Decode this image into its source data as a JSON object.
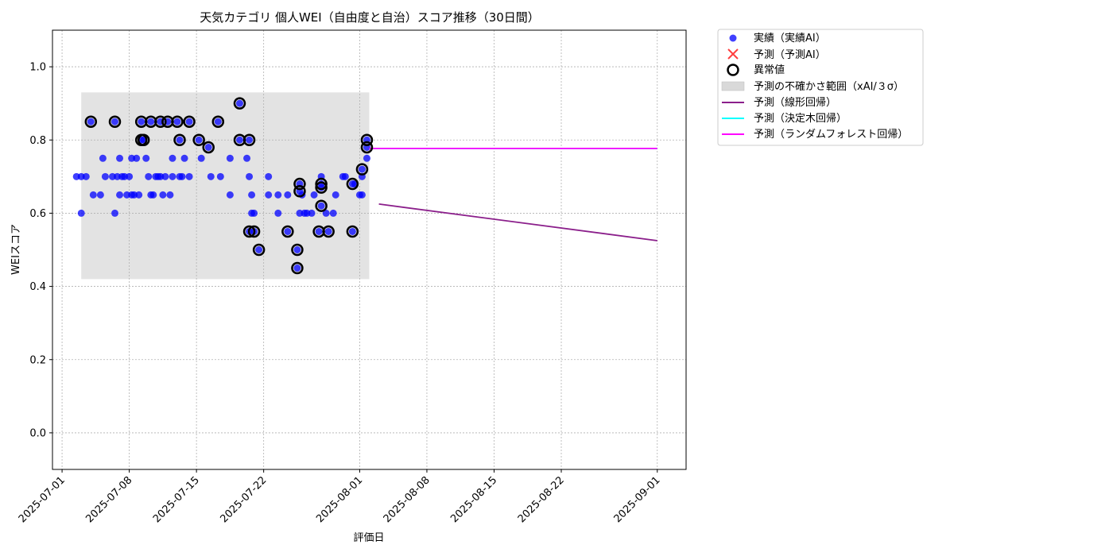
{
  "chart_data": {
    "type": "scatter",
    "title": "天気カテゴリ 個人WEI（自由度と自治）スコア推移（30日間）",
    "xlabel": "評価日",
    "ylabel": "WEIスコア",
    "xlim": [
      "2025-06-30",
      "2025-09-04"
    ],
    "ylim": [
      -0.1,
      1.1
    ],
    "yticks": [
      0.0,
      0.2,
      0.4,
      0.6,
      0.8,
      1.0
    ],
    "yticklabels": [
      "0.0",
      "0.2",
      "0.4",
      "0.6",
      "0.8",
      "1.0"
    ],
    "xticks": [
      "2025-07-01",
      "2025-07-08",
      "2025-07-15",
      "2025-07-22",
      "2025-08-01",
      "2025-08-08",
      "2025-08-15",
      "2025-08-22",
      "2025-09-01"
    ],
    "grid": true,
    "legend_position": "outside-top-right",
    "uncertainty_band": {
      "x_start": "2025-07-03",
      "x_end": "2025-08-02",
      "y_low": 0.42,
      "y_high": 0.93,
      "color": "#d9d9d9"
    },
    "series": [
      {
        "name": "実績（実績AI）",
        "kind": "scatter",
        "color": "#0000ff",
        "points": [
          [
            "2025-07-02 12:00",
            0.7
          ],
          [
            "2025-07-03 00:00",
            0.7
          ],
          [
            "2025-07-03 00:00",
            0.6
          ],
          [
            "2025-07-03 12:00",
            0.7
          ],
          [
            "2025-07-04 00:00",
            0.85
          ],
          [
            "2025-07-04 06:00",
            0.65
          ],
          [
            "2025-07-05 00:00",
            0.65
          ],
          [
            "2025-07-05 06:00",
            0.75
          ],
          [
            "2025-07-05 12:00",
            0.7
          ],
          [
            "2025-07-06 06:00",
            0.7
          ],
          [
            "2025-07-06 12:00",
            0.6
          ],
          [
            "2025-07-06 12:00",
            0.85
          ],
          [
            "2025-07-06 18:00",
            0.7
          ],
          [
            "2025-07-07 00:00",
            0.65
          ],
          [
            "2025-07-07 00:00",
            0.75
          ],
          [
            "2025-07-07 06:00",
            0.7
          ],
          [
            "2025-07-07 12:00",
            0.7
          ],
          [
            "2025-07-07 18:00",
            0.65
          ],
          [
            "2025-07-08 00:00",
            0.7
          ],
          [
            "2025-07-08 06:00",
            0.65
          ],
          [
            "2025-07-08 06:00",
            0.75
          ],
          [
            "2025-07-08 12:00",
            0.65
          ],
          [
            "2025-07-08 18:00",
            0.75
          ],
          [
            "2025-07-09 00:00",
            0.65
          ],
          [
            "2025-07-09 06:00",
            0.8
          ],
          [
            "2025-07-09 06:00",
            0.85
          ],
          [
            "2025-07-09 12:00",
            0.8
          ],
          [
            "2025-07-09 18:00",
            0.75
          ],
          [
            "2025-07-10 00:00",
            0.7
          ],
          [
            "2025-07-10 06:00",
            0.85
          ],
          [
            "2025-07-10 06:00",
            0.65
          ],
          [
            "2025-07-10 12:00",
            0.65
          ],
          [
            "2025-07-10 18:00",
            0.7
          ],
          [
            "2025-07-11 00:00",
            0.7
          ],
          [
            "2025-07-11 06:00",
            0.85
          ],
          [
            "2025-07-11 06:00",
            0.7
          ],
          [
            "2025-07-11 12:00",
            0.65
          ],
          [
            "2025-07-11 18:00",
            0.7
          ],
          [
            "2025-07-12 00:00",
            0.85
          ],
          [
            "2025-07-12 06:00",
            0.65
          ],
          [
            "2025-07-12 12:00",
            0.75
          ],
          [
            "2025-07-12 12:00",
            0.7
          ],
          [
            "2025-07-13 00:00",
            0.85
          ],
          [
            "2025-07-13 06:00",
            0.7
          ],
          [
            "2025-07-13 06:00",
            0.8
          ],
          [
            "2025-07-13 12:00",
            0.7
          ],
          [
            "2025-07-13 18:00",
            0.75
          ],
          [
            "2025-07-14 06:00",
            0.85
          ],
          [
            "2025-07-14 06:00",
            0.7
          ],
          [
            "2025-07-15 06:00",
            0.8
          ],
          [
            "2025-07-15 12:00",
            0.75
          ],
          [
            "2025-07-16 06:00",
            0.78
          ],
          [
            "2025-07-16 12:00",
            0.7
          ],
          [
            "2025-07-17 06:00",
            0.85
          ],
          [
            "2025-07-17 12:00",
            0.7
          ],
          [
            "2025-07-18 12:00",
            0.75
          ],
          [
            "2025-07-18 12:00",
            0.65
          ],
          [
            "2025-07-19 12:00",
            0.9
          ],
          [
            "2025-07-19 12:00",
            0.8
          ],
          [
            "2025-07-20 06:00",
            0.75
          ],
          [
            "2025-07-20 12:00",
            0.8
          ],
          [
            "2025-07-20 12:00",
            0.7
          ],
          [
            "2025-07-20 12:00",
            0.55
          ],
          [
            "2025-07-20 18:00",
            0.65
          ],
          [
            "2025-07-20 18:00",
            0.6
          ],
          [
            "2025-07-21 00:00",
            0.55
          ],
          [
            "2025-07-21 00:00",
            0.6
          ],
          [
            "2025-07-21 12:00",
            0.5
          ],
          [
            "2025-07-22 12:00",
            0.7
          ],
          [
            "2025-07-22 12:00",
            0.65
          ],
          [
            "2025-07-23 12:00",
            0.6
          ],
          [
            "2025-07-23 12:00",
            0.65
          ],
          [
            "2025-07-24 12:00",
            0.55
          ],
          [
            "2025-07-24 12:00",
            0.65
          ],
          [
            "2025-07-25 12:00",
            0.5
          ],
          [
            "2025-07-25 12:00",
            0.45
          ],
          [
            "2025-07-25 18:00",
            0.68
          ],
          [
            "2025-07-25 18:00",
            0.66
          ],
          [
            "2025-07-25 18:00",
            0.6
          ],
          [
            "2025-07-26 00:00",
            0.65
          ],
          [
            "2025-07-26 06:00",
            0.6
          ],
          [
            "2025-07-26 12:00",
            0.6
          ],
          [
            "2025-07-27 00:00",
            0.6
          ],
          [
            "2025-07-27 06:00",
            0.65
          ],
          [
            "2025-07-27 18:00",
            0.55
          ],
          [
            "2025-07-28 00:00",
            0.67
          ],
          [
            "2025-07-28 00:00",
            0.62
          ],
          [
            "2025-07-28 00:00",
            0.68
          ],
          [
            "2025-07-28 00:00",
            0.7
          ],
          [
            "2025-07-28 12:00",
            0.6
          ],
          [
            "2025-07-28 18:00",
            0.55
          ],
          [
            "2025-07-29 06:00",
            0.6
          ],
          [
            "2025-07-29 12:00",
            0.65
          ],
          [
            "2025-07-30 06:00",
            0.7
          ],
          [
            "2025-07-30 12:00",
            0.7
          ],
          [
            "2025-07-31 06:00",
            0.55
          ],
          [
            "2025-07-31 06:00",
            0.68
          ],
          [
            "2025-07-31 12:00",
            0.68
          ],
          [
            "2025-08-01 00:00",
            0.65
          ],
          [
            "2025-08-01 06:00",
            0.72
          ],
          [
            "2025-08-01 06:00",
            0.7
          ],
          [
            "2025-08-01 06:00",
            0.65
          ],
          [
            "2025-08-01 18:00",
            0.78
          ],
          [
            "2025-08-01 18:00",
            0.8
          ],
          [
            "2025-08-01 18:00",
            0.75
          ]
        ]
      },
      {
        "name": "予測（予測AI）",
        "kind": "scatter",
        "color": "#ff0000",
        "points": []
      },
      {
        "name": "異常値",
        "kind": "ring",
        "color": "#000000",
        "points": [
          [
            "2025-07-04 00:00",
            0.85
          ],
          [
            "2025-07-06 12:00",
            0.85
          ],
          [
            "2025-07-09 06:00",
            0.85
          ],
          [
            "2025-07-09 06:00",
            0.8
          ],
          [
            "2025-07-09 12:00",
            0.8
          ],
          [
            "2025-07-10 06:00",
            0.85
          ],
          [
            "2025-07-11 06:00",
            0.85
          ],
          [
            "2025-07-12 00:00",
            0.85
          ],
          [
            "2025-07-13 00:00",
            0.85
          ],
          [
            "2025-07-13 06:00",
            0.8
          ],
          [
            "2025-07-14 06:00",
            0.85
          ],
          [
            "2025-07-15 06:00",
            0.8
          ],
          [
            "2025-07-16 06:00",
            0.78
          ],
          [
            "2025-07-17 06:00",
            0.85
          ],
          [
            "2025-07-19 12:00",
            0.9
          ],
          [
            "2025-07-19 12:00",
            0.8
          ],
          [
            "2025-07-20 12:00",
            0.8
          ],
          [
            "2025-07-20 12:00",
            0.55
          ],
          [
            "2025-07-21 00:00",
            0.55
          ],
          [
            "2025-07-21 12:00",
            0.5
          ],
          [
            "2025-07-24 12:00",
            0.55
          ],
          [
            "2025-07-25 12:00",
            0.5
          ],
          [
            "2025-07-25 12:00",
            0.45
          ],
          [
            "2025-07-25 18:00",
            0.68
          ],
          [
            "2025-07-25 18:00",
            0.66
          ],
          [
            "2025-07-27 18:00",
            0.55
          ],
          [
            "2025-07-28 00:00",
            0.67
          ],
          [
            "2025-07-28 00:00",
            0.62
          ],
          [
            "2025-07-28 00:00",
            0.68
          ],
          [
            "2025-07-28 18:00",
            0.55
          ],
          [
            "2025-07-31 06:00",
            0.55
          ],
          [
            "2025-07-31 06:00",
            0.68
          ],
          [
            "2025-08-01 06:00",
            0.72
          ],
          [
            "2025-08-01 18:00",
            0.78
          ],
          [
            "2025-08-01 18:00",
            0.8
          ]
        ]
      },
      {
        "name": "予測の不確かさ範囲（xAI/３σ）",
        "kind": "band",
        "color": "#d9d9d9"
      },
      {
        "name": "予測（線形回帰）",
        "kind": "line",
        "color": "#8b1f8b",
        "points": [
          [
            "2025-08-03",
            0.625
          ],
          [
            "2025-09-01",
            0.525
          ]
        ]
      },
      {
        "name": "予測（決定木回帰）",
        "kind": "line",
        "color": "#00ffff",
        "points": [
          [
            "2025-08-02",
            0.777
          ],
          [
            "2025-09-01",
            0.777
          ]
        ]
      },
      {
        "name": "予測（ランダムフォレスト回帰）",
        "kind": "line",
        "color": "#ff00ff",
        "points": [
          [
            "2025-08-02",
            0.777
          ],
          [
            "2025-09-01",
            0.777
          ]
        ]
      }
    ]
  }
}
